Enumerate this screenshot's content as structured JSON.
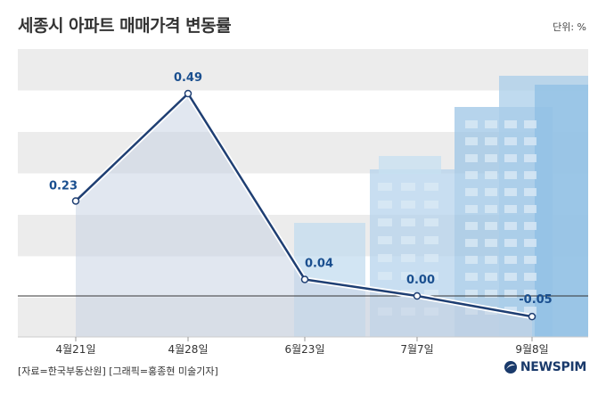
{
  "header": {
    "title": "세종시 아파트 매매가격 변동률",
    "unit": "단위: %"
  },
  "footer": {
    "source": "[자료=한국부동산원] [그래픽=홍종현 미술기자]",
    "brand": "NEWSPIM"
  },
  "colors": {
    "line": "#1f3f73",
    "label": "#1a4f8f",
    "band": "#ececec",
    "area": "#c9d4e3",
    "building": "#a8cbe6"
  },
  "chart_data": {
    "type": "line",
    "categories": [
      "4월21일",
      "4월28일",
      "6월23일",
      "7월7일",
      "9월8일"
    ],
    "series": [
      {
        "values": [
          0.23,
          0.49,
          0.04,
          0.0,
          -0.05
        ],
        "labels": [
          "0.23",
          "0.49",
          "0.04",
          "0.00",
          "-0.05"
        ]
      }
    ],
    "ylim": [
      -0.09,
      0.59
    ],
    "grid": "horizontal-bands",
    "zero_line": true
  }
}
